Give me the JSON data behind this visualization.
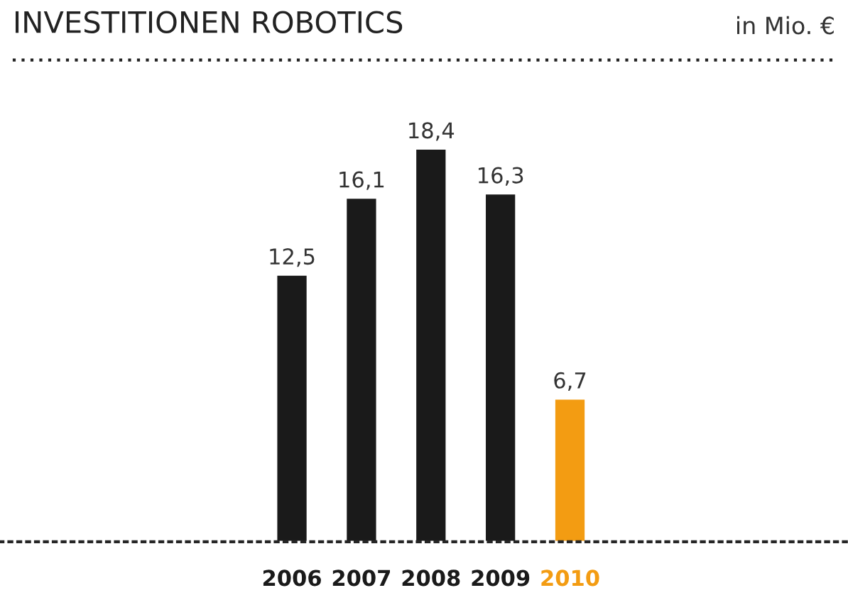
{
  "chart_data": {
    "type": "bar",
    "title": "INVESTITIONEN ROBOTICS",
    "subtitle": "in Mio. €",
    "categories": [
      "2006",
      "2007",
      "2008",
      "2009",
      "2010"
    ],
    "values": [
      12.5,
      16.1,
      18.4,
      16.3,
      6.7
    ],
    "colors": [
      "#1a1a1a",
      "#1a1a1a",
      "#1a1a1a",
      "#1a1a1a",
      "#f39c12"
    ],
    "value_labels": [
      "12,5",
      "16,1",
      "18,4",
      "16,3",
      "6,7"
    ],
    "grid": false,
    "legend": false
  }
}
